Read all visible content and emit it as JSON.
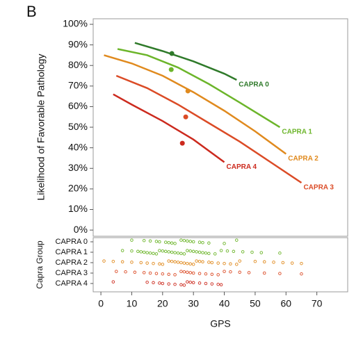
{
  "panel_label": "B",
  "chart_data": [
    {
      "type": "line",
      "y_label": "Likelihood of Favorable Pathology",
      "xlim": [
        -2.5,
        80
      ],
      "ylim": [
        -3,
        102.7
      ],
      "yticks": [
        {
          "value": 0,
          "label": "0%"
        },
        {
          "value": 10,
          "label": "10%"
        },
        {
          "value": 20,
          "label": "20%"
        },
        {
          "value": 30,
          "label": "30%"
        },
        {
          "value": 40,
          "label": "40%"
        },
        {
          "value": 50,
          "label": "50%"
        },
        {
          "value": 60,
          "label": "60%"
        },
        {
          "value": 70,
          "label": "70%"
        },
        {
          "value": 80,
          "label": "80%"
        },
        {
          "value": 90,
          "label": "90%"
        },
        {
          "value": 100,
          "label": "100%"
        }
      ],
      "series": [
        {
          "name": "CAPRA 0",
          "color": "#2f7a2a",
          "x": [
            11,
            20,
            30,
            40,
            44
          ],
          "values": [
            91,
            87,
            82,
            76,
            73
          ],
          "marker_x": 23,
          "marker_y": 85.8
        },
        {
          "name": "CAPRA 1",
          "color": "#6cb52a",
          "x": [
            5.4,
            15,
            25,
            35,
            45,
            58
          ],
          "values": [
            88,
            85,
            79,
            71,
            62,
            50
          ],
          "marker_x": 22.8,
          "marker_y": 78
        },
        {
          "name": "CAPRA 2",
          "color": "#e08a1e",
          "x": [
            1,
            10,
            20,
            30,
            40,
            50,
            60
          ],
          "values": [
            85,
            81,
            75,
            67,
            58,
            48,
            37
          ],
          "marker_x": 28.2,
          "marker_y": 67.6
        },
        {
          "name": "CAPRA 3",
          "color": "#db4b26",
          "x": [
            5,
            15,
            25,
            35,
            45,
            55,
            65
          ],
          "values": [
            75,
            69,
            61,
            52,
            43,
            33,
            23
          ],
          "marker_x": 27.5,
          "marker_y": 55
        },
        {
          "name": "CAPRA 4",
          "color": "#cc2a1e",
          "x": [
            4,
            10,
            20,
            30,
            40
          ],
          "values": [
            66,
            61,
            53,
            44,
            33
          ],
          "marker_x": 26.4,
          "marker_y": 42.2
        }
      ]
    },
    {
      "type": "strip",
      "x_label": "GPS",
      "y_label": "Capra Group",
      "xlim": [
        -2.5,
        80
      ],
      "xticks": [
        0,
        10,
        20,
        30,
        40,
        50,
        60,
        70
      ],
      "categories": [
        "CAPRA 0",
        "CAPRA 1",
        "CAPRA 2",
        "CAPRA 3",
        "CAPRA 4"
      ],
      "series": [
        {
          "name": "CAPRA 0",
          "color": "#6cb52a",
          "values": [
            10,
            14,
            16,
            18,
            19,
            21,
            22,
            23,
            24,
            26,
            27,
            28,
            29,
            30,
            32,
            33,
            35,
            40,
            44
          ]
        },
        {
          "name": "CAPRA 1",
          "color": "#6cb52a",
          "values": [
            7,
            10,
            12,
            13,
            14,
            15,
            16,
            17,
            18,
            19,
            20,
            21,
            22,
            23,
            24,
            25,
            26,
            27,
            28,
            29,
            30,
            31,
            32,
            33,
            34,
            35,
            37,
            39,
            41,
            43,
            46,
            49,
            52,
            58
          ]
        },
        {
          "name": "CAPRA 2",
          "color": "#e08a1e",
          "values": [
            1,
            4,
            7,
            10,
            13,
            15,
            17,
            19,
            20,
            22,
            23,
            24,
            25,
            26,
            27,
            28,
            29,
            30,
            31,
            32,
            33,
            35,
            36,
            38,
            40,
            42,
            44,
            45,
            50,
            53,
            56,
            59,
            62,
            65
          ]
        },
        {
          "name": "CAPRA 3",
          "color": "#db4b26",
          "values": [
            5,
            8,
            11,
            14,
            16,
            18,
            20,
            22,
            24,
            26,
            27,
            28,
            29,
            30,
            32,
            34,
            36,
            38,
            40,
            42,
            45,
            48,
            53,
            58,
            65
          ]
        },
        {
          "name": "CAPRA 4",
          "color": "#cc2a1e",
          "values": [
            4,
            15,
            17,
            19,
            20,
            22,
            24,
            26,
            27,
            28,
            29,
            30,
            32,
            34,
            36,
            38,
            39
          ]
        }
      ]
    }
  ]
}
